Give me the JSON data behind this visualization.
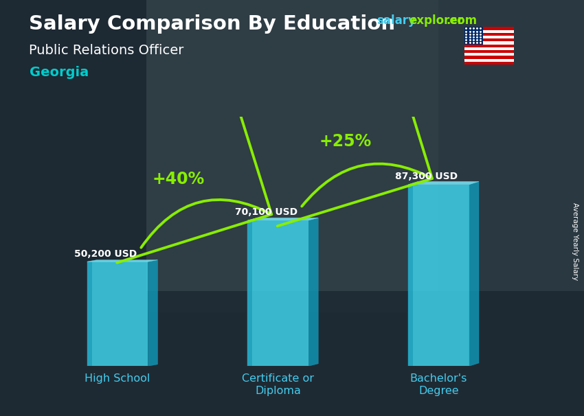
{
  "title": "Salary Comparison By Education",
  "subtitle": "Public Relations Officer",
  "location": "Georgia",
  "ylabel": "Average Yearly Salary",
  "categories": [
    "High School",
    "Certificate or\nDiploma",
    "Bachelor's\nDegree"
  ],
  "values": [
    50200,
    70100,
    87300
  ],
  "value_labels": [
    "50,200 USD",
    "70,100 USD",
    "87,300 USD"
  ],
  "pct_labels": [
    "+40%",
    "+25%"
  ],
  "face_color": "#40d8f0",
  "side_color": "#1098b8",
  "top_color": "#80eeff",
  "bg_color": "#3a4a55",
  "title_color": "#ffffff",
  "subtitle_color": "#ffffff",
  "location_color": "#00ddcc",
  "value_color": "#ffffff",
  "pct_color": "#88ee00",
  "arrow_color": "#88ee00",
  "website_salary_color": "#44ccee",
  "website_explorer_color": "#88ee00",
  "bar_width": 0.38,
  "bar_alpha": 0.82,
  "ylim": [
    0,
    120000
  ],
  "positions": [
    0,
    1,
    2
  ]
}
